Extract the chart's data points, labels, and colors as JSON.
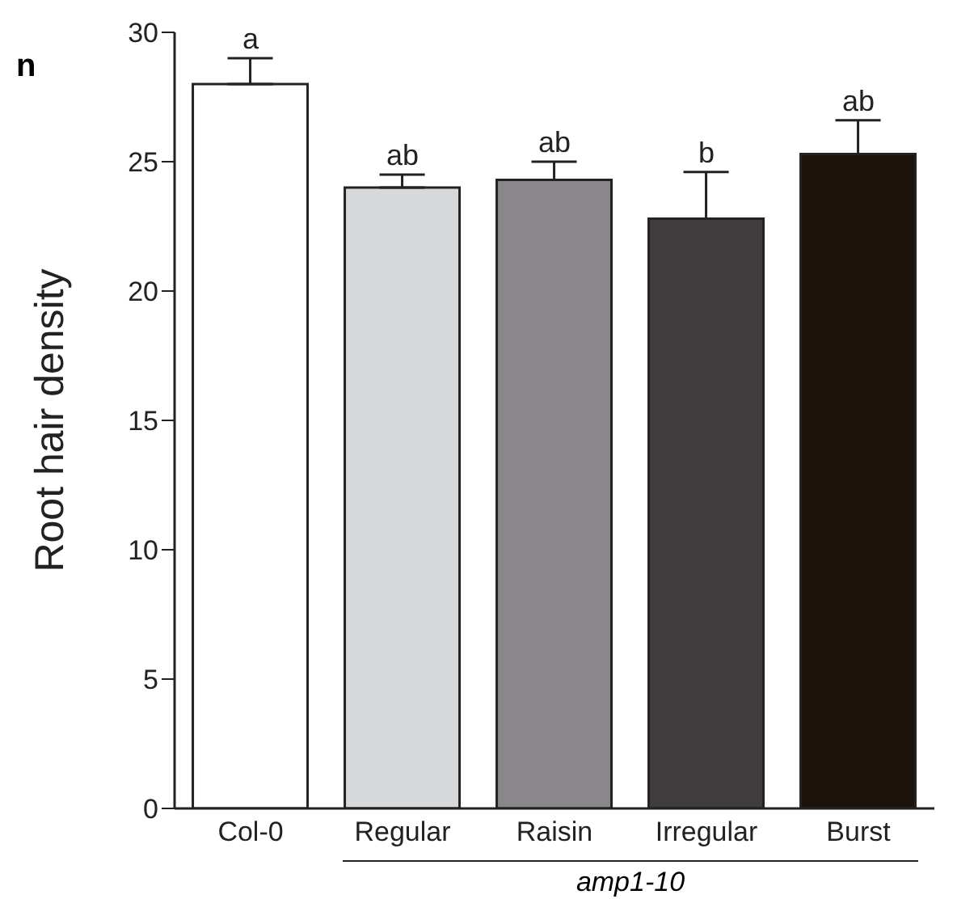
{
  "chart_data": {
    "type": "bar",
    "ylabel": "Root hair density",
    "categories": [
      "Col-0",
      "Regular",
      "Raisin",
      "Irregular",
      "Burst"
    ],
    "values": [
      28.0,
      24.0,
      24.3,
      22.8,
      25.3
    ],
    "colors": [
      "#ffffff",
      "#d6d8db",
      "#8a868b",
      "#403c3e",
      "#1e120d"
    ],
    "errors": [
      [
        28.0,
        29.0
      ],
      [
        24.0,
        24.5
      ],
      [
        24.3,
        25.0
      ],
      [
        22.8,
        24.6
      ],
      [
        25.3,
        26.6
      ]
    ],
    "ylim": [
      0,
      30
    ],
    "yticks": [
      0,
      5,
      10,
      15,
      20,
      25,
      30
    ],
    "grid": false,
    "legend": false,
    "annotations": [
      "n",
      "amp1-10",
      {
        "text": "a",
        "x": "Col-0",
        "y": 29.0
      },
      {
        "text": "ab",
        "x": "Regular",
        "y": 24.5
      },
      {
        "text": "ab",
        "x": "Raisin",
        "y": 25.0
      },
      {
        "text": "b",
        "x": "Irregular",
        "y": 24.6
      },
      {
        "text": "ab",
        "x": "Burst",
        "y": 26.6
      }
    ]
  }
}
